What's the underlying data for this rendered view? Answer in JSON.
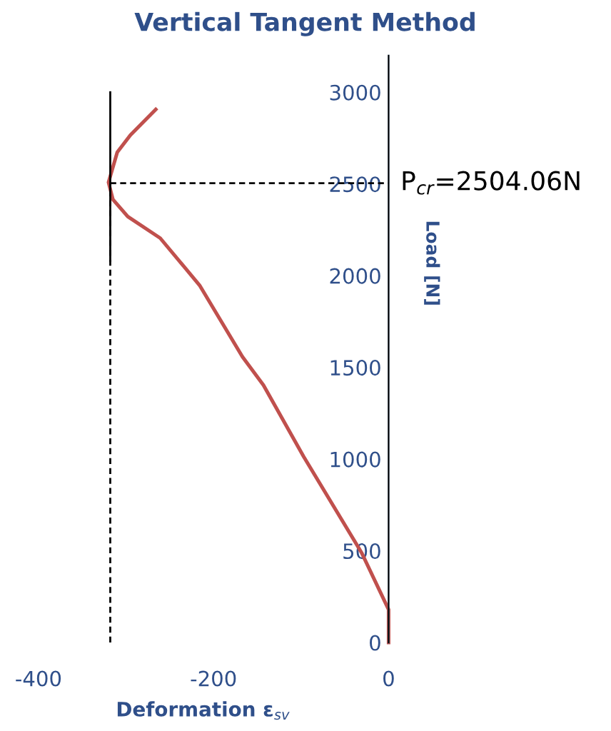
{
  "chart_data": {
    "type": "line",
    "title": "Vertical Tangent Method",
    "xlabel": "Deformation ε$_{sv}$",
    "ylabel": "Load [N]",
    "xlim": [
      -400,
      0
    ],
    "xticks": [
      -400,
      -200,
      0
    ],
    "ylim": [
      0,
      3200
    ],
    "yticks": [
      0,
      500,
      1000,
      1500,
      2000,
      2500,
      3000
    ],
    "grid": false,
    "marker": "none",
    "series": [
      {
        "color": "#c0504d",
        "x": [
          0,
          0,
          -31,
          -97,
          -143,
          -167,
          -216,
          -261,
          -298,
          -315,
          -320,
          -310,
          -295,
          -266
        ],
        "values": [
          0,
          180,
          491,
          1013,
          1403,
          1558,
          1948,
          2205,
          2322,
          2416,
          2509,
          2673,
          2766,
          2906
        ]
      },
      {
        "color": "#000000",
        "x": [
          -318,
          -318
        ],
        "values": [
          2080,
          3000
        ]
      },
      {
        "color": "#000000",
        "line_style": "dashed",
        "x": [
          -318,
          -318
        ],
        "values": [
          0,
          2504.06
        ]
      },
      {
        "color": "#000000",
        "line_style": "dashed",
        "x": [
          -318,
          0
        ],
        "values": [
          2504.06,
          2504.06
        ]
      }
    ],
    "annotations": [
      {
        "text": "P$_{cr}$=2504.06N",
        "x": 0,
        "y": 2504.06
      }
    ]
  }
}
